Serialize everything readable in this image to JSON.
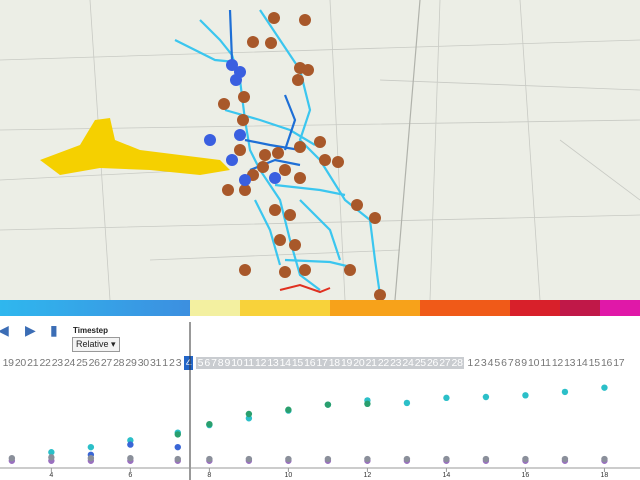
{
  "controls": {
    "timestep_label": "Timestep",
    "timestep_mode": "Relative"
  },
  "timeline": {
    "before": [
      19,
      20,
      21,
      22,
      23,
      24,
      25,
      26,
      27,
      28,
      29,
      30,
      31,
      1,
      2,
      3
    ],
    "current": 4,
    "window": [
      5,
      6,
      7,
      8,
      9,
      10,
      11,
      12,
      13,
      14,
      15,
      16,
      17,
      18,
      19,
      20,
      21,
      22,
      23,
      24,
      25,
      26,
      27,
      28
    ],
    "after": [
      1,
      2,
      3,
      4,
      5,
      6,
      7,
      8,
      9,
      10,
      11,
      12,
      13,
      14,
      15,
      16,
      17
    ]
  },
  "chart_data": {
    "type": "scatter",
    "xlim": [
      2.7,
      18.9
    ],
    "ylim": [
      0,
      100
    ],
    "xticks": [
      4,
      6,
      8,
      10,
      12,
      14,
      16,
      18
    ],
    "series": [
      {
        "color": "#2bbfc8",
        "x": [
          4,
          5,
          6,
          7.2,
          8,
          9,
          10,
          11,
          12,
          13,
          14,
          15,
          16,
          17,
          18
        ],
        "y": [
          15,
          21,
          29,
          38,
          47,
          55,
          64,
          71,
          76,
          73,
          79,
          80,
          82,
          86,
          91
        ]
      },
      {
        "color": "#2a9f6e",
        "x": [
          7.2,
          8,
          9,
          10,
          11,
          12
        ],
        "y": [
          36,
          48,
          60,
          65,
          71,
          72
        ]
      },
      {
        "color": "#3a66d6",
        "x": [
          5,
          6,
          7.2
        ],
        "y": [
          12,
          24,
          21
        ]
      },
      {
        "color": "#9a6fc0",
        "x": [
          3,
          4,
          5,
          6,
          7.2,
          8,
          9,
          10,
          11,
          12,
          13,
          14,
          15,
          16,
          17,
          18
        ],
        "y": [
          5,
          5,
          5,
          5,
          5,
          5,
          5,
          5,
          5,
          5,
          5,
          5,
          5,
          5,
          5,
          5
        ]
      },
      {
        "color": "#8a8f9a",
        "x": [
          3,
          4,
          5,
          6,
          7.2,
          8,
          9,
          10,
          11,
          12,
          13,
          14,
          15,
          16,
          17,
          18
        ],
        "y": [
          8,
          9,
          8,
          8,
          7,
          7,
          7,
          7,
          7,
          7,
          7,
          7,
          7,
          7,
          7,
          7
        ]
      }
    ]
  }
}
